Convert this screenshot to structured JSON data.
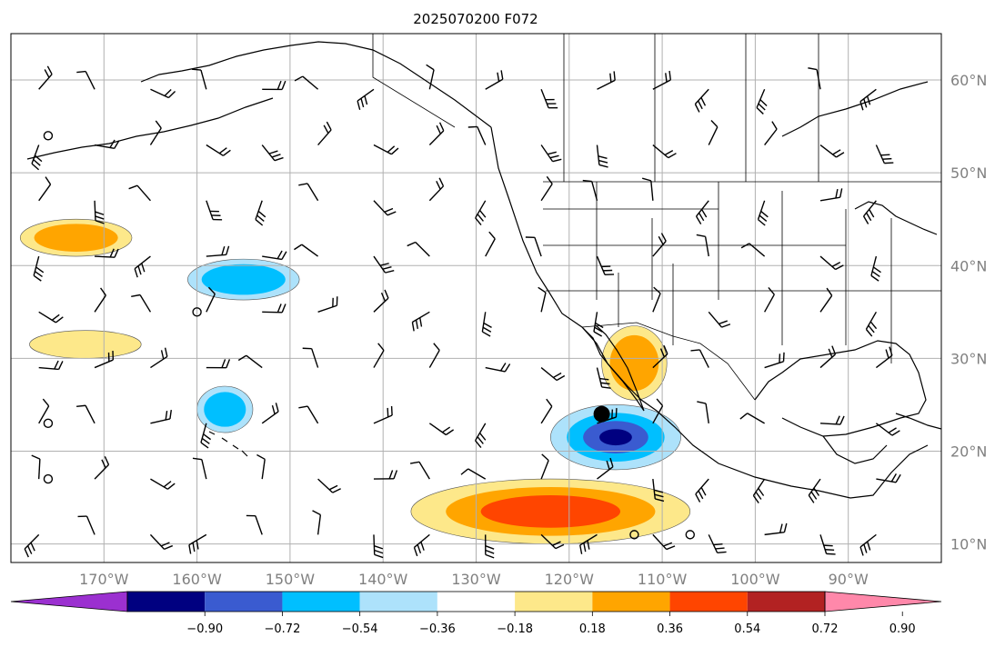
{
  "title": "2025070200 F072",
  "map": {
    "lon_range": [
      -180,
      -80
    ],
    "lat_range": [
      8,
      65
    ],
    "lon_ticks": [
      {
        "value": -170,
        "label": "170°W"
      },
      {
        "value": -160,
        "label": "160°W"
      },
      {
        "value": -150,
        "label": "150°W"
      },
      {
        "value": -140,
        "label": "140°W"
      },
      {
        "value": -130,
        "label": "130°W"
      },
      {
        "value": -120,
        "label": "120°W"
      },
      {
        "value": -110,
        "label": "110°W"
      },
      {
        "value": -100,
        "label": "100°W"
      },
      {
        "value": -90,
        "label": "90°W"
      }
    ],
    "lat_ticks": [
      {
        "value": 10,
        "label": "10°N"
      },
      {
        "value": 20,
        "label": "20°N"
      },
      {
        "value": 30,
        "label": "30°N"
      },
      {
        "value": 40,
        "label": "40°N"
      },
      {
        "value": 50,
        "label": "50°N"
      },
      {
        "value": 60,
        "label": "60°N"
      }
    ],
    "grid": true
  },
  "colorbar": {
    "colors": [
      "#9b30d0",
      "#000080",
      "#3a5bd0",
      "#00bfff",
      "#ade2fb",
      "#ffffff",
      "#fde88a",
      "#ffa500",
      "#ff4500",
      "#b22222",
      "#ff88aa"
    ],
    "tick_labels": [
      "−0.90",
      "−0.72",
      "−0.54",
      "−0.36",
      "−0.18",
      "0.18",
      "0.36",
      "0.54",
      "0.72",
      "0.90"
    ]
  },
  "features": [
    {
      "name": "anomaly-south-mexico-offshore",
      "lon": -115,
      "lat": 21.5,
      "rx": 7,
      "ry": 3.5,
      "levels": [
        "#ade2fb",
        "#00bfff",
        "#3a5bd0",
        "#000080"
      ]
    },
    {
      "name": "anomaly-central-pacific-40n",
      "lon": -155,
      "lat": 38.5,
      "rx": 6,
      "ry": 2.2,
      "levels": [
        "#ade2fb",
        "#00bfff"
      ]
    },
    {
      "name": "anomaly-hawaii-north",
      "lon": -157,
      "lat": 24.5,
      "rx": 3,
      "ry": 2.5,
      "levels": [
        "#ade2fb",
        "#00bfff"
      ]
    },
    {
      "name": "anomaly-tropical-east-pacific",
      "lon": -122,
      "lat": 13.5,
      "rx": 15,
      "ry": 3.5,
      "levels": [
        "#fde88a",
        "#ffa500",
        "#ff4500"
      ]
    },
    {
      "name": "anomaly-gulf-california",
      "lon": -113,
      "lat": 29.5,
      "rx": 3.5,
      "ry": 4,
      "levels": [
        "#fde88a",
        "#ffa500"
      ]
    },
    {
      "name": "anomaly-pacific-west-40n",
      "lon": -173,
      "lat": 43,
      "rx": 6,
      "ry": 2,
      "levels": [
        "#fde88a",
        "#ffa500"
      ]
    },
    {
      "name": "anomaly-pacific-32n",
      "lon": -172,
      "lat": 31.5,
      "rx": 6,
      "ry": 1.5,
      "levels": [
        "#fde88a"
      ]
    }
  ],
  "station_circles": [
    {
      "lon": -176,
      "lat": 54
    },
    {
      "lon": -176,
      "lat": 23
    },
    {
      "lon": -176,
      "lat": 17
    },
    {
      "lon": -160,
      "lat": 35
    },
    {
      "lon": -113,
      "lat": 11
    },
    {
      "lon": -107,
      "lat": 11
    }
  ],
  "marker": {
    "lon": -116.5,
    "lat": 24
  }
}
